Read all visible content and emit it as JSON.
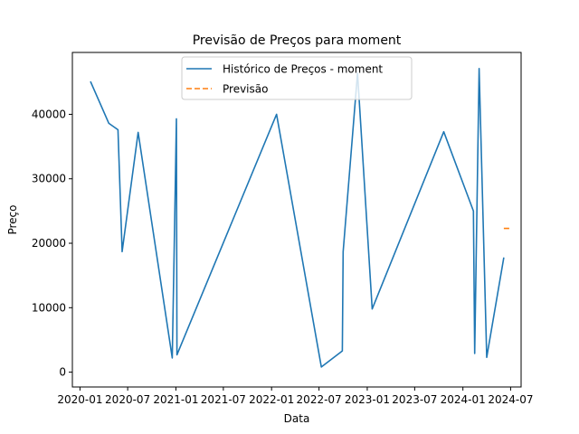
{
  "chart_data": {
    "type": "line",
    "title": "Previsão de Preços para moment",
    "xlabel": "Data",
    "ylabel": "Preço",
    "x_ticks": [
      "2020-01",
      "2020-07",
      "2021-01",
      "2021-07",
      "2022-01",
      "2022-07",
      "2023-01",
      "2023-07",
      "2024-01",
      "2024-07"
    ],
    "y_ticks": [
      0,
      10000,
      20000,
      30000,
      40000
    ],
    "xlim": [
      "2019-12-03",
      "2024-08-10"
    ],
    "ylim": [
      -2300,
      49600
    ],
    "legend_position": "upper center",
    "grid": false,
    "series": [
      {
        "name": "Histórico de Preços - moment",
        "color": "#1f77b4",
        "style": "solid",
        "points": [
          {
            "date": "2020-02-10",
            "value": 45100
          },
          {
            "date": "2020-04-20",
            "value": 38600
          },
          {
            "date": "2020-05-25",
            "value": 37600
          },
          {
            "date": "2020-06-10",
            "value": 18700
          },
          {
            "date": "2020-08-10",
            "value": 37200
          },
          {
            "date": "2020-12-18",
            "value": 2200
          },
          {
            "date": "2020-12-25",
            "value": 18000
          },
          {
            "date": "2021-01-03",
            "value": 39300
          },
          {
            "date": "2021-01-05",
            "value": 2700
          },
          {
            "date": "2022-01-20",
            "value": 40000
          },
          {
            "date": "2022-07-10",
            "value": 800
          },
          {
            "date": "2022-09-28",
            "value": 3300
          },
          {
            "date": "2022-10-01",
            "value": 18700
          },
          {
            "date": "2022-11-25",
            "value": 46400
          },
          {
            "date": "2023-01-20",
            "value": 9800
          },
          {
            "date": "2023-10-20",
            "value": 37300
          },
          {
            "date": "2024-02-10",
            "value": 25000
          },
          {
            "date": "2024-02-15",
            "value": 2900
          },
          {
            "date": "2024-03-03",
            "value": 47100
          },
          {
            "date": "2024-04-01",
            "value": 2300
          },
          {
            "date": "2024-06-05",
            "value": 17800
          }
        ]
      },
      {
        "name": "Previsão",
        "color": "#ff7f0e",
        "style": "dashed",
        "points": [
          {
            "date": "2024-06-05",
            "value": 22300
          },
          {
            "date": "2024-07-01",
            "value": 22300
          }
        ]
      }
    ]
  }
}
